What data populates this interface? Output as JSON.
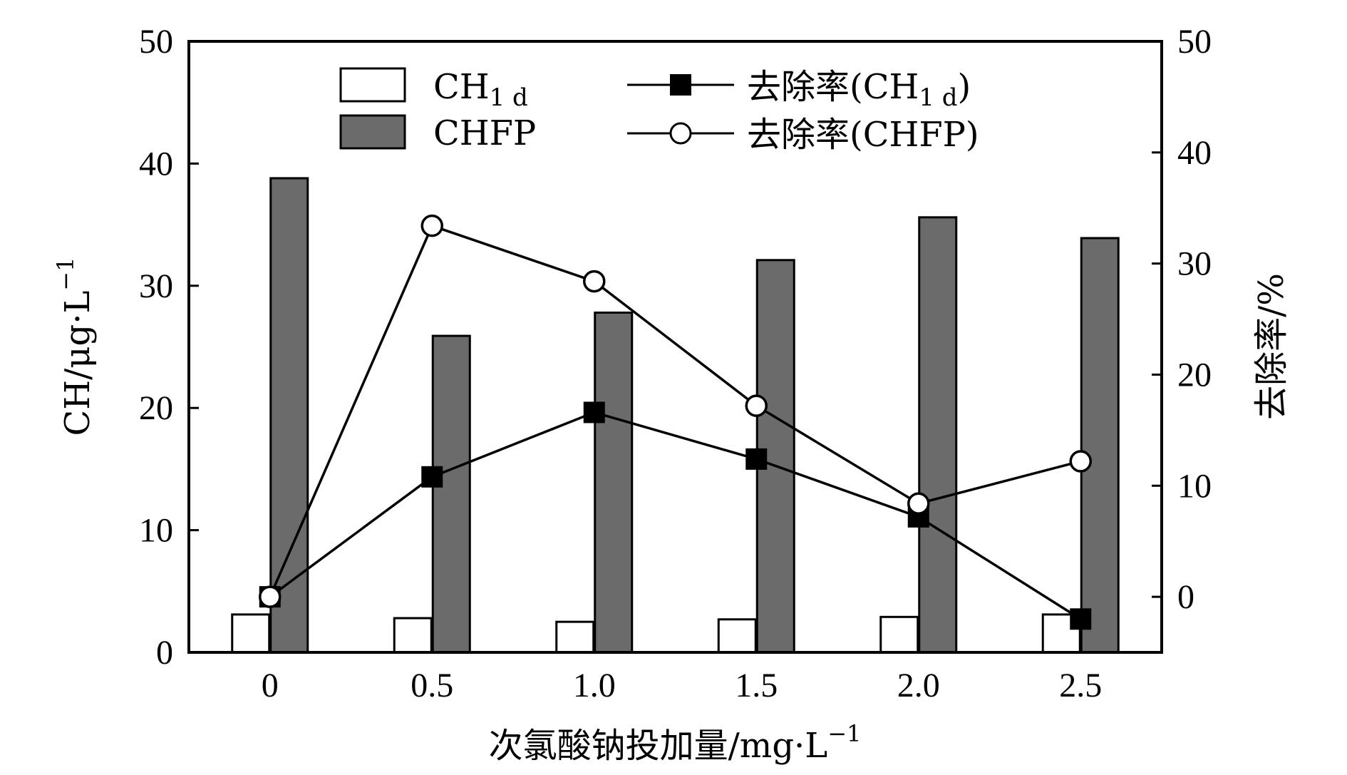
{
  "chart_data": {
    "type": "bar",
    "categories": [
      "0",
      "0.5",
      "1.0",
      "1.5",
      "2.0",
      "2.5"
    ],
    "xlabel": "次氯酸钠投加量/mg·L",
    "xlabel_sup": "−1",
    "ylabel": "CH/μg·L",
    "ylabel_sup": "−1",
    "ylabel_right": "去除率/%",
    "ylim": [
      0,
      50
    ],
    "ylim_right": [
      -5,
      50
    ],
    "yticks": [
      "0",
      "10",
      "20",
      "30",
      "40",
      "50"
    ],
    "yticks_right": [
      "0",
      "10",
      "20",
      "30",
      "40",
      "50"
    ],
    "bar_series": [
      {
        "name": "CH",
        "name_sub": "1 d",
        "values": [
          3.1,
          2.8,
          2.5,
          2.7,
          2.9,
          3.1
        ],
        "color": "#ffffff"
      },
      {
        "name": "CHFP",
        "values": [
          38.8,
          25.9,
          27.8,
          32.1,
          35.6,
          33.9
        ],
        "color": "#6b6b6b"
      }
    ],
    "line_series": [
      {
        "name": "去除率(CH",
        "name_sub": "1 d",
        "name_end": ")",
        "marker": "filled-square",
        "values": [
          0.0,
          10.8,
          16.6,
          12.4,
          7.2,
          -2.0
        ]
      },
      {
        "name": "去除率(CHFP)",
        "marker": "open-circle",
        "values": [
          0.0,
          33.4,
          28.4,
          17.2,
          8.4,
          12.2
        ]
      }
    ],
    "legend_position": "top",
    "grid": false
  }
}
